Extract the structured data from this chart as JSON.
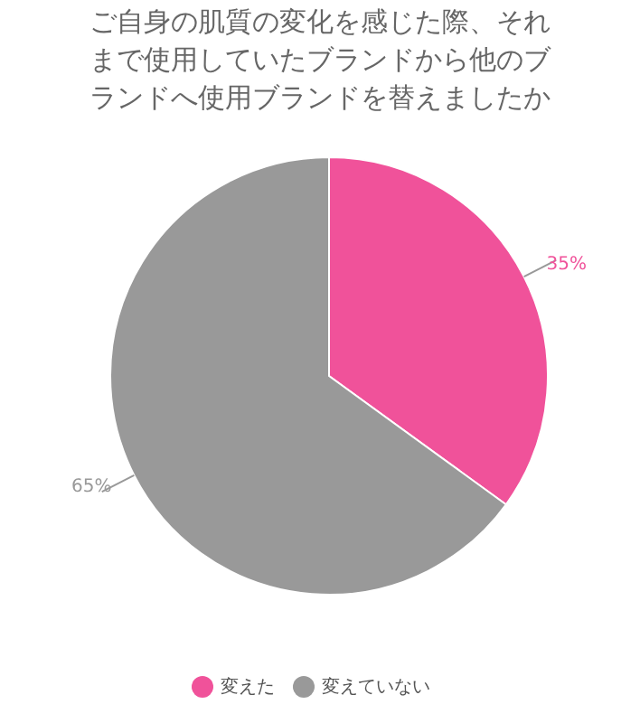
{
  "chart_data": {
    "type": "pie",
    "title": "ご自身の肌質の変化を感じた際、それまで使用していたブランドから他のブランドへ使用ブランドを替えましたか",
    "categories": [
      "変えた",
      "変えていない"
    ],
    "values": [
      35,
      65
    ],
    "colors": [
      "#f0529a",
      "#999999"
    ],
    "value_labels": [
      "35%",
      "65%"
    ],
    "legend": "bottom"
  }
}
